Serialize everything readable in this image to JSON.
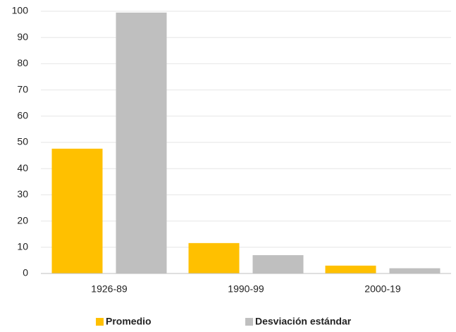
{
  "chart_data": {
    "type": "bar",
    "categories": [
      "1926-89",
      "1990-99",
      "2000-19"
    ],
    "series": [
      {
        "name": "Promedio",
        "color": "#ffc000",
        "values": [
          47.6,
          11.6,
          3.0
        ]
      },
      {
        "name": "Desviación estándar",
        "color": "#bfbfbf",
        "values": [
          99.5,
          7.0,
          2.0
        ]
      }
    ],
    "ylim": [
      0,
      100
    ],
    "yticks": [
      0,
      10,
      20,
      30,
      40,
      50,
      60,
      70,
      80,
      90,
      100
    ],
    "grid": true,
    "legend": "bottom"
  }
}
